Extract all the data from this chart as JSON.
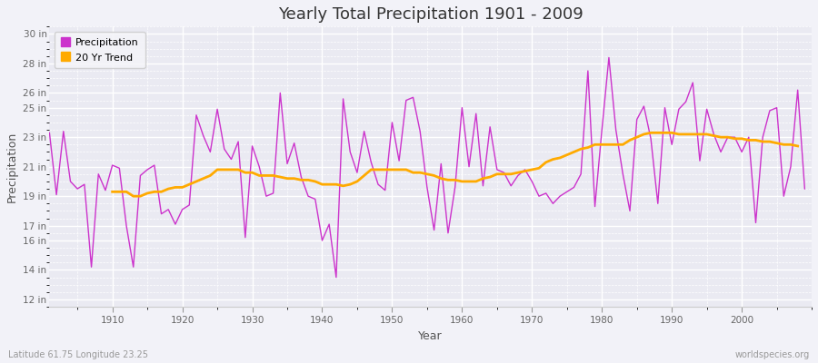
{
  "title": "Yearly Total Precipitation 1901 - 2009",
  "xlabel": "Year",
  "ylabel": "Precipitation",
  "subtitle_left": "Latitude 61.75 Longitude 23.25",
  "subtitle_right": "worldspecies.org",
  "ylim": [
    11.5,
    30.5
  ],
  "yticks": [
    12,
    14,
    16,
    17,
    19,
    21,
    23,
    25,
    26,
    28,
    30
  ],
  "ytick_labels": [
    "12 in",
    "14 in",
    "16 in",
    "17 in",
    "19 in",
    "21 in",
    "23 in",
    "25 in",
    "26 in",
    "28 in",
    "30 in"
  ],
  "precip_color": "#cc33cc",
  "trend_color": "#ffaa00",
  "fig_bg": "#f0f0f8",
  "plot_bg": "#e8e8f0",
  "years": [
    1901,
    1902,
    1903,
    1904,
    1905,
    1906,
    1907,
    1908,
    1909,
    1910,
    1911,
    1912,
    1913,
    1914,
    1915,
    1916,
    1917,
    1918,
    1919,
    1920,
    1921,
    1922,
    1923,
    1924,
    1925,
    1926,
    1927,
    1928,
    1929,
    1930,
    1931,
    1932,
    1933,
    1934,
    1935,
    1936,
    1937,
    1938,
    1939,
    1940,
    1941,
    1942,
    1943,
    1944,
    1945,
    1946,
    1947,
    1948,
    1949,
    1950,
    1951,
    1952,
    1953,
    1954,
    1955,
    1956,
    1957,
    1958,
    1959,
    1960,
    1961,
    1962,
    1963,
    1964,
    1965,
    1966,
    1967,
    1968,
    1969,
    1970,
    1971,
    1972,
    1973,
    1974,
    1975,
    1976,
    1977,
    1978,
    1979,
    1980,
    1981,
    1982,
    1983,
    1984,
    1985,
    1986,
    1987,
    1988,
    1989,
    1990,
    1991,
    1992,
    1993,
    1994,
    1995,
    1996,
    1997,
    1998,
    1999,
    2000,
    2001,
    2002,
    2003,
    2004,
    2005,
    2006,
    2007,
    2008,
    2009
  ],
  "precip": [
    23.3,
    19.1,
    23.4,
    20.0,
    19.5,
    19.8,
    14.2,
    20.5,
    19.4,
    21.1,
    20.9,
    17.0,
    14.2,
    20.4,
    20.8,
    21.1,
    17.8,
    18.1,
    17.1,
    18.1,
    18.4,
    24.5,
    23.1,
    22.0,
    24.9,
    22.2,
    21.5,
    22.7,
    16.2,
    22.4,
    21.0,
    19.0,
    19.2,
    26.0,
    21.2,
    22.6,
    20.3,
    19.0,
    18.8,
    16.0,
    17.1,
    13.5,
    25.6,
    22.0,
    20.6,
    23.4,
    21.3,
    19.8,
    19.4,
    24.0,
    21.4,
    25.5,
    25.7,
    23.4,
    19.6,
    16.7,
    21.2,
    16.5,
    19.6,
    25.0,
    21.0,
    24.6,
    19.7,
    23.7,
    20.8,
    20.6,
    19.7,
    20.4,
    20.8,
    20.0,
    19.0,
    19.2,
    18.5,
    19.0,
    19.3,
    19.6,
    20.5,
    27.5,
    18.3,
    23.5,
    28.4,
    23.5,
    20.5,
    18.0,
    24.2,
    25.1,
    22.9,
    18.5,
    25.0,
    22.5,
    24.9,
    25.4,
    26.7,
    21.4,
    24.9,
    23.2,
    22.0,
    23.0,
    23.0,
    22.0,
    23.0,
    17.2,
    23.0,
    24.8,
    25.0,
    19.0,
    21.0,
    26.2,
    19.5
  ],
  "trend": [
    null,
    null,
    null,
    null,
    null,
    null,
    null,
    null,
    null,
    19.3,
    19.3,
    19.3,
    19.0,
    19.0,
    19.2,
    19.3,
    19.3,
    19.5,
    19.6,
    19.6,
    19.8,
    20.0,
    20.2,
    20.4,
    20.8,
    20.8,
    20.8,
    20.8,
    20.6,
    20.6,
    20.4,
    20.4,
    20.4,
    20.3,
    20.2,
    20.2,
    20.1,
    20.1,
    20.0,
    19.8,
    19.8,
    19.8,
    19.7,
    19.8,
    20.0,
    20.4,
    20.8,
    20.8,
    20.8,
    20.8,
    20.8,
    20.8,
    20.6,
    20.6,
    20.5,
    20.4,
    20.2,
    20.1,
    20.1,
    20.0,
    20.0,
    20.0,
    20.2,
    20.3,
    20.5,
    20.5,
    20.5,
    20.6,
    20.7,
    20.8,
    20.9,
    21.3,
    21.5,
    21.6,
    21.8,
    22.0,
    22.2,
    22.3,
    22.5,
    22.5,
    22.5,
    22.5,
    22.5,
    22.8,
    23.0,
    23.2,
    23.3,
    23.3,
    23.3,
    23.3,
    23.2,
    23.2,
    23.2,
    23.2,
    23.2,
    23.1,
    23.0,
    23.0,
    22.9,
    22.9,
    22.8,
    22.8,
    22.7,
    22.7,
    22.6,
    22.5,
    22.5,
    22.4
  ]
}
